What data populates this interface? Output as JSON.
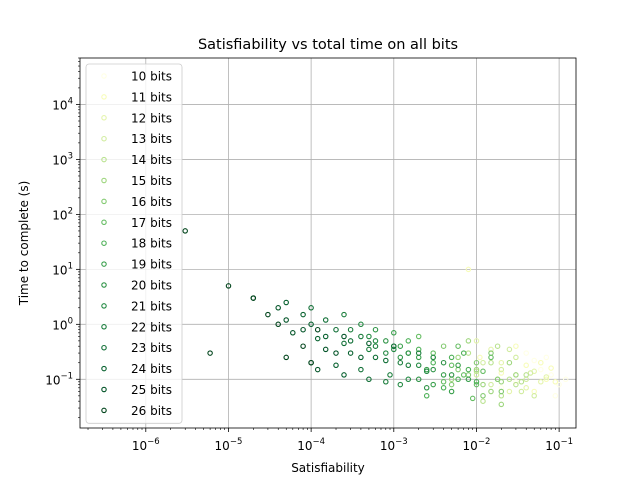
{
  "chart_data": {
    "type": "scatter",
    "title": "Satisfiability vs total time on all bits",
    "xlabel": "Satisfiability",
    "ylabel": "Time to complete (s)",
    "xscale": "log",
    "yscale": "log",
    "xlim": [
      1.6e-07,
      0.16
    ],
    "ylim": [
      0.013,
      70000
    ],
    "grid": true,
    "legend_position": "upper left",
    "x_ticks": [
      {
        "value": 1e-06,
        "base": "10",
        "exp": "−6"
      },
      {
        "value": 1e-05,
        "base": "10",
        "exp": "−5"
      },
      {
        "value": 0.0001,
        "base": "10",
        "exp": "−4"
      },
      {
        "value": 0.001,
        "base": "10",
        "exp": "−3"
      },
      {
        "value": 0.01,
        "base": "10",
        "exp": "−2"
      },
      {
        "value": 0.1,
        "base": "10",
        "exp": "−1"
      }
    ],
    "y_ticks": [
      {
        "value": 0.1,
        "base": "10",
        "exp": "−1"
      },
      {
        "value": 1,
        "base": "10",
        "exp": "0"
      },
      {
        "value": 10,
        "base": "10",
        "exp": "1"
      },
      {
        "value": 100,
        "base": "10",
        "exp": "2"
      },
      {
        "value": 1000,
        "base": "10",
        "exp": "3"
      },
      {
        "value": 10000,
        "base": "10",
        "exp": "4"
      }
    ],
    "series": [
      {
        "name": "10 bits",
        "color": "#ffffe5",
        "points": [
          [
            0.05,
            0.22
          ],
          [
            0.08,
            0.12
          ],
          [
            0.03,
            0.09
          ],
          [
            0.1,
            0.08
          ],
          [
            0.06,
            0.15
          ],
          [
            0.04,
            0.3
          ],
          [
            0.02,
            0.07
          ],
          [
            0.09,
            0.05
          ],
          [
            0.07,
            0.25
          ],
          [
            0.12,
            0.1
          ]
        ]
      },
      {
        "name": "11 bits",
        "color": "#f7fcb9",
        "points": [
          [
            0.04,
            0.18
          ],
          [
            0.07,
            0.1
          ],
          [
            0.02,
            0.13
          ],
          [
            0.09,
            0.09
          ],
          [
            0.05,
            0.06
          ],
          [
            0.03,
            0.4
          ],
          [
            0.06,
            0.2
          ],
          [
            0.008,
            10.0
          ],
          [
            0.011,
            0.25
          ],
          [
            0.08,
            0.16
          ]
        ]
      },
      {
        "name": "12 bits",
        "color": "#e4f4ac",
        "points": [
          [
            0.03,
            0.12
          ],
          [
            0.06,
            0.09
          ],
          [
            0.02,
            0.2
          ],
          [
            0.05,
            0.14
          ],
          [
            0.015,
            0.35
          ],
          [
            0.04,
            0.07
          ],
          [
            0.07,
            0.11
          ],
          [
            0.025,
            0.06
          ],
          [
            0.01,
            0.5
          ],
          [
            0.018,
            0.1
          ]
        ]
      },
      {
        "name": "13 bits",
        "color": "#d1eca0",
        "points": [
          [
            0.02,
            0.15
          ],
          [
            0.04,
            0.1
          ],
          [
            0.015,
            0.08
          ],
          [
            0.03,
            0.25
          ],
          [
            0.05,
            0.05
          ],
          [
            0.01,
            0.12
          ],
          [
            0.025,
            0.35
          ],
          [
            0.035,
            0.06
          ],
          [
            0.012,
            0.2
          ],
          [
            0.045,
            0.13
          ]
        ]
      },
      {
        "name": "14 bits",
        "color": "#b9e28f",
        "points": [
          [
            0.015,
            0.2
          ],
          [
            0.03,
            0.08
          ],
          [
            0.01,
            0.14
          ],
          [
            0.02,
            0.05
          ],
          [
            0.04,
            0.12
          ],
          [
            0.008,
            0.3
          ],
          [
            0.025,
            0.1
          ],
          [
            0.012,
            0.04
          ],
          [
            0.018,
            0.4
          ],
          [
            0.035,
            0.09
          ]
        ]
      },
      {
        "name": "15 bits",
        "color": "#9fd67f",
        "points": [
          [
            0.01,
            0.15
          ],
          [
            0.02,
            0.09
          ],
          [
            0.006,
            0.25
          ],
          [
            0.015,
            0.06
          ],
          [
            0.03,
            0.12
          ],
          [
            0.008,
            0.5
          ],
          [
            0.012,
            0.08
          ],
          [
            0.025,
            0.2
          ],
          [
            0.005,
            0.1
          ],
          [
            0.02,
            0.035
          ]
        ]
      },
      {
        "name": "16 bits",
        "color": "#84ca72",
        "points": [
          [
            0.008,
            0.12
          ],
          [
            0.015,
            0.3
          ],
          [
            0.005,
            0.08
          ],
          [
            0.01,
            0.2
          ],
          [
            0.02,
            0.06
          ],
          [
            0.004,
            0.4
          ],
          [
            0.006,
            0.15
          ],
          [
            0.012,
            0.05
          ],
          [
            0.003,
            0.25
          ],
          [
            0.018,
            0.1
          ]
        ]
      },
      {
        "name": "17 bits",
        "color": "#66bd63",
        "points": [
          [
            0.005,
            0.18
          ],
          [
            0.01,
            0.08
          ],
          [
            0.003,
            0.3
          ],
          [
            0.007,
            0.12
          ],
          [
            0.015,
            0.25
          ],
          [
            0.002,
            0.6
          ],
          [
            0.004,
            0.09
          ],
          [
            0.009,
            0.045
          ],
          [
            0.006,
            0.4
          ],
          [
            0.012,
            0.14
          ]
        ]
      },
      {
        "name": "18 bits",
        "color": "#4db057",
        "points": [
          [
            0.003,
            0.2
          ],
          [
            0.006,
            0.1
          ],
          [
            0.002,
            0.35
          ],
          [
            0.004,
            0.07
          ],
          [
            0.008,
            0.15
          ],
          [
            0.0015,
            0.5
          ],
          [
            0.005,
            0.25
          ],
          [
            0.0025,
            0.05
          ],
          [
            0.007,
            0.3
          ],
          [
            0.01,
            0.09
          ]
        ]
      },
      {
        "name": "19 bits",
        "color": "#389f4b",
        "points": [
          [
            0.002,
            0.25
          ],
          [
            0.004,
            0.12
          ],
          [
            0.0012,
            0.4
          ],
          [
            0.003,
            0.08
          ],
          [
            0.006,
            0.18
          ],
          [
            0.001,
            0.7
          ],
          [
            0.0025,
            0.15
          ],
          [
            0.005,
            0.06
          ],
          [
            0.0015,
            0.3
          ],
          [
            0.008,
            0.1
          ]
        ]
      },
      {
        "name": "20 bits",
        "color": "#2e9346",
        "points": [
          [
            0.0015,
            0.3
          ],
          [
            0.003,
            0.15
          ],
          [
            0.0008,
            0.5
          ],
          [
            0.002,
            0.1
          ],
          [
            0.004,
            0.2
          ],
          [
            0.0006,
            0.8
          ],
          [
            0.0012,
            0.25
          ],
          [
            0.0025,
            0.07
          ],
          [
            0.001,
            0.4
          ],
          [
            0.005,
            0.12
          ]
        ]
      },
      {
        "name": "21 bits",
        "color": "#238a43",
        "points": [
          [
            0.001,
            0.35
          ],
          [
            0.002,
            0.18
          ],
          [
            0.0005,
            0.6
          ],
          [
            0.0015,
            0.1
          ],
          [
            0.003,
            0.25
          ],
          [
            0.0004,
            1.0
          ],
          [
            0.0008,
            0.3
          ],
          [
            0.0012,
            0.08
          ],
          [
            0.0006,
            0.5
          ],
          [
            0.0025,
            0.14
          ]
        ]
      },
      {
        "name": "22 bits",
        "color": "#1a7d3c",
        "points": [
          [
            0.0006,
            0.4
          ],
          [
            0.0012,
            0.2
          ],
          [
            0.0003,
            0.8
          ],
          [
            0.0009,
            0.12
          ],
          [
            0.002,
            0.3
          ],
          [
            0.00025,
            1.5
          ],
          [
            0.0005,
            0.35
          ],
          [
            0.0008,
            0.09
          ],
          [
            0.0004,
            0.6
          ],
          [
            0.0015,
            0.18
          ]
        ]
      },
      {
        "name": "23 bits",
        "color": "#0f6e35",
        "points": [
          [
            0.0003,
            0.5
          ],
          [
            0.0006,
            0.25
          ],
          [
            0.00015,
            1.2
          ],
          [
            0.0004,
            0.15
          ],
          [
            0.001,
            0.4
          ],
          [
            0.0001,
            2.0
          ],
          [
            0.00025,
            0.45
          ],
          [
            0.0005,
            0.1
          ],
          [
            0.0002,
            0.8
          ],
          [
            0.0008,
            0.22
          ]
        ]
      },
      {
        "name": "24 bits",
        "color": "#06602e",
        "points": [
          [
            0.00015,
            0.6
          ],
          [
            0.0003,
            0.3
          ],
          [
            8e-05,
            1.5
          ],
          [
            0.0002,
            0.18
          ],
          [
            0.0005,
            0.45
          ],
          [
            5e-05,
            2.5
          ],
          [
            0.00012,
            0.55
          ],
          [
            0.00025,
            0.12
          ],
          [
            0.0001,
            1.0
          ],
          [
            0.0004,
            0.25
          ]
        ]
      },
      {
        "name": "25 bits",
        "color": "#035428",
        "points": [
          [
            8e-05,
            0.8
          ],
          [
            0.00015,
            0.35
          ],
          [
            4e-05,
            2.0
          ],
          [
            0.0001,
            0.2
          ],
          [
            0.00025,
            0.6
          ],
          [
            2e-05,
            3.0
          ],
          [
            6e-05,
            0.7
          ],
          [
            0.00012,
            0.15
          ],
          [
            5e-05,
            1.2
          ],
          [
            0.0002,
            0.3
          ]
        ]
      },
      {
        "name": "26 bits",
        "color": "#00441b",
        "points": [
          [
            4e-05,
            1.0
          ],
          [
            8e-05,
            0.4
          ],
          [
            2e-05,
            3.0
          ],
          [
            5e-05,
            0.25
          ],
          [
            0.00012,
            0.8
          ],
          [
            1e-05,
            5.0
          ],
          [
            3e-06,
            50.0
          ],
          [
            6e-06,
            0.3
          ],
          [
            3e-05,
            1.5
          ],
          [
            0.0001,
            0.2
          ]
        ]
      }
    ]
  }
}
